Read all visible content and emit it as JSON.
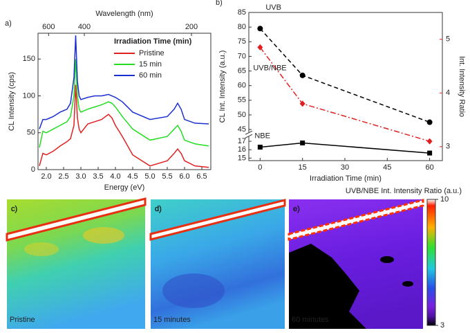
{
  "chart_data": [
    {
      "type": "line",
      "panel_label": "a)",
      "xlabel": "Energy (eV)",
      "ylabel": "CL Intensity (cps)",
      "x2label": "Wavelength (nm)",
      "legend_title": "Irradiation Time (min)",
      "legend": "upper right",
      "x": [
        1.8,
        1.9,
        2.0,
        2.2,
        2.4,
        2.6,
        2.7,
        2.8,
        2.85,
        2.9,
        2.95,
        3.0,
        3.2,
        3.4,
        3.6,
        3.8,
        3.9,
        4.0,
        4.2,
        4.5,
        5.0,
        5.5,
        5.7,
        5.8,
        5.9,
        6.0,
        6.3,
        6.7
      ],
      "series": [
        {
          "name": "Pristine",
          "color": "#e02020",
          "values": [
            5,
            22,
            20,
            25,
            32,
            38,
            42,
            60,
            115,
            70,
            55,
            50,
            62,
            65,
            68,
            75,
            70,
            60,
            45,
            20,
            5,
            12,
            22,
            28,
            22,
            12,
            5,
            3
          ]
        },
        {
          "name": "15 min",
          "color": "#22dd22",
          "values": [
            30,
            52,
            50,
            55,
            60,
            65,
            72,
            100,
            150,
            100,
            82,
            78,
            82,
            85,
            88,
            92,
            90,
            85,
            72,
            55,
            40,
            45,
            55,
            60,
            52,
            40,
            35,
            32
          ]
        },
        {
          "name": "60 min",
          "color": "#1a2fd0",
          "values": [
            55,
            68,
            68,
            72,
            78,
            82,
            90,
            125,
            182,
            120,
            100,
            95,
            98,
            100,
            100,
            102,
            100,
            98,
            92,
            78,
            68,
            72,
            82,
            90,
            82,
            68,
            63,
            62
          ]
        }
      ],
      "xlim": [
        1.76,
        6.76
      ],
      "xticks": [
        {
          "value": 2,
          "label": "2.0"
        },
        2.5,
        {
          "value": 3,
          "label": "3.0"
        },
        3.5,
        {
          "value": 4,
          "label": "4.0"
        },
        4.5,
        {
          "value": 5,
          "label": "5.0"
        },
        5.5,
        {
          "value": 6,
          "label": "6.0"
        },
        6.5
      ],
      "ylim": [
        0,
        185
      ],
      "yticks": [
        0,
        50,
        100,
        150
      ],
      "x2ticks": [
        600,
        400,
        200
      ]
    },
    {
      "type": "line",
      "panel_label": "b)",
      "xlabel": "Irradiation Time (min)",
      "ylabel": "CL Int. Intensity (a.u.)",
      "y2label": "Int. Intensity Ratio",
      "x": [
        0,
        15,
        60
      ],
      "xlim": [
        -4,
        64.5
      ],
      "xticks": [
        0,
        15,
        30,
        45,
        60
      ],
      "y_segments": [
        {
          "ylim": [
            44.5,
            85
          ],
          "yticks": [
            45,
            50,
            55,
            60,
            65,
            70,
            75,
            80,
            85
          ]
        },
        {
          "ylim": [
            14.7,
            17.4
          ],
          "yticks": [
            15,
            16,
            17
          ]
        }
      ],
      "y2lim": [
        2.74,
        5.5
      ],
      "y2ticks": [
        3,
        4,
        5
      ],
      "y2color": "#e02020",
      "series": [
        {
          "name": "UVB",
          "color": "#000000",
          "values": [
            79.5,
            63.5,
            47.5
          ],
          "segment": 0,
          "linestyle": "dashed",
          "marker": "circle"
        },
        {
          "name": "NBE",
          "color": "#000000",
          "values": [
            16.3,
            16.8,
            15.6
          ],
          "segment": 1,
          "linestyle": "solid",
          "marker": "square"
        },
        {
          "name": "UVB/NBE",
          "color": "#e02020",
          "values": [
            4.85,
            3.8,
            3.1
          ],
          "axis": "y2",
          "linestyle": "dashdot",
          "marker": "diamond"
        }
      ]
    }
  ],
  "maps": {
    "panels": [
      {
        "label": "c)",
        "caption": "Pristine"
      },
      {
        "label": "d)",
        "caption": "15 minutes"
      },
      {
        "label": "e)",
        "caption": "60 minutes"
      }
    ],
    "colorbar": {
      "title": "UVB/NBE Int. Intensity Ratio (a.u.)",
      "lim": [
        3,
        10
      ],
      "ticks": [
        10,
        3
      ]
    }
  }
}
